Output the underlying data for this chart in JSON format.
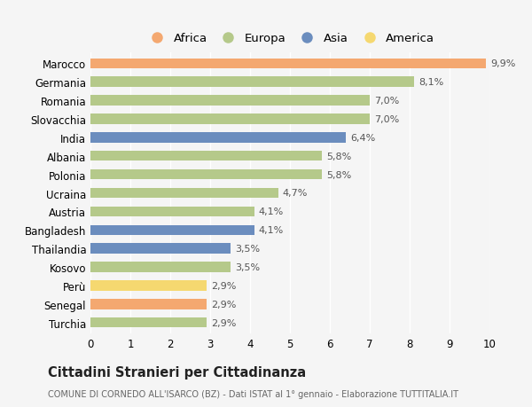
{
  "countries": [
    "Marocco",
    "Germania",
    "Romania",
    "Slovacchia",
    "India",
    "Albania",
    "Polonia",
    "Ucraina",
    "Austria",
    "Bangladesh",
    "Thailandia",
    "Kosovo",
    "Perù",
    "Senegal",
    "Turchia"
  ],
  "values": [
    9.9,
    8.1,
    7.0,
    7.0,
    6.4,
    5.8,
    5.8,
    4.7,
    4.1,
    4.1,
    3.5,
    3.5,
    2.9,
    2.9,
    2.9
  ],
  "labels": [
    "9,9%",
    "8,1%",
    "7,0%",
    "7,0%",
    "6,4%",
    "5,8%",
    "5,8%",
    "4,7%",
    "4,1%",
    "4,1%",
    "3,5%",
    "3,5%",
    "2,9%",
    "2,9%",
    "2,9%"
  ],
  "continents": [
    "Africa",
    "Europa",
    "Europa",
    "Europa",
    "Asia",
    "Europa",
    "Europa",
    "Europa",
    "Europa",
    "Asia",
    "Asia",
    "Europa",
    "America",
    "Africa",
    "Europa"
  ],
  "continent_colors": {
    "Africa": "#F4A870",
    "Europa": "#B5C98A",
    "Asia": "#6B8DBE",
    "America": "#F5D870"
  },
  "legend_order": [
    "Africa",
    "Europa",
    "Asia",
    "America"
  ],
  "bg_color": "#f5f5f5",
  "xlim": [
    0,
    10
  ],
  "xticks": [
    0,
    1,
    2,
    3,
    4,
    5,
    6,
    7,
    8,
    9,
    10
  ],
  "title": "Cittadini Stranieri per Cittadinanza",
  "subtitle": "COMUNE DI CORNEDO ALL'ISARCO (BZ) - Dati ISTAT al 1° gennaio - Elaborazione TUTTITALIA.IT",
  "bar_height": 0.55,
  "label_fontsize": 8.0,
  "ytick_fontsize": 8.5,
  "xtick_fontsize": 8.5,
  "legend_fontsize": 9.5,
  "title_fontsize": 10.5,
  "subtitle_fontsize": 7.0
}
